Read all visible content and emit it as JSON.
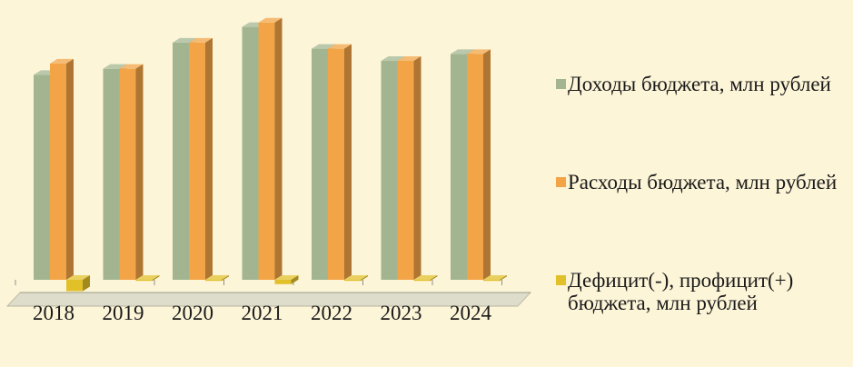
{
  "chart_data": {
    "type": "bar",
    "categories": [
      "2018",
      "2019",
      "2020",
      "2021",
      "2022",
      "2023",
      "2024"
    ],
    "series": [
      {
        "name": "Доходы бюджета, млн рублей",
        "color": "#a3b590",
        "values": [
          235,
          242,
          272,
          290,
          265,
          251,
          259
        ]
      },
      {
        "name": "Расходы бюджета, млн рублей",
        "color": "#f2a446",
        "values": [
          248,
          242,
          272,
          295,
          265,
          251,
          259
        ]
      },
      {
        "name": "Дефицит(-), профицит(+) бюджета, млн рублей",
        "color": "#e2c02a",
        "values": [
          -13,
          0,
          0,
          -5,
          0,
          0,
          0
        ]
      }
    ],
    "xlabel": "",
    "ylabel": "",
    "ylim": [
      -15,
      300
    ],
    "grid": false,
    "legend": "right",
    "chart_style": "3d-clustered-column"
  }
}
